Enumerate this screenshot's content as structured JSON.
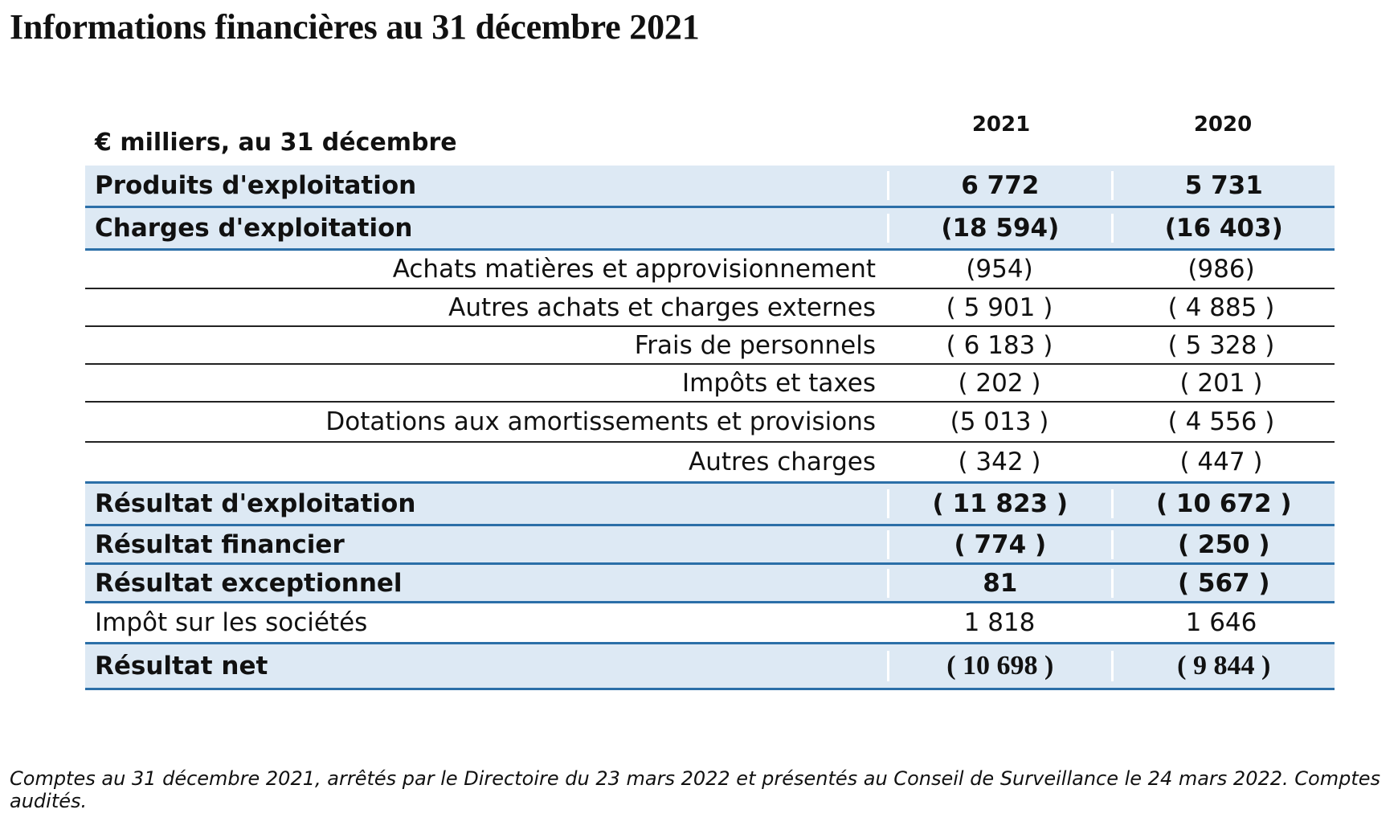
{
  "title": "Informations financières au 31 décembre 2021",
  "table": {
    "unit_label": "€ milliers, au 31 décembre",
    "year_1": "2021",
    "year_2": "2020",
    "rows": [
      {
        "label": "Produits d'exploitation",
        "v2021": "6 772",
        "v2020": "5 731"
      },
      {
        "label": "Charges d'exploitation",
        "v2021": "(18 594)",
        "v2020": "(16 403)"
      },
      {
        "label": "Achats matières et approvisionnement",
        "v2021": "(954)",
        "v2020": "(986)"
      },
      {
        "label": "Autres achats et charges externes",
        "v2021": "( 5 901 )",
        "v2020": "( 4 885 )"
      },
      {
        "label": "Frais de personnels",
        "v2021": "( 6 183 )",
        "v2020": "( 5 328 )"
      },
      {
        "label": "Impôts et taxes",
        "v2021": "( 202 )",
        "v2020": "( 201 )"
      },
      {
        "label": "Dotations aux amortissements et provisions",
        "v2021": "(5 013 )",
        "v2020": "( 4 556 )"
      },
      {
        "label": "Autres charges",
        "v2021": "( 342 )",
        "v2020": "( 447 )"
      },
      {
        "label": "Résultat d'exploitation",
        "v2021": "( 11 823 )",
        "v2020": "( 10 672 )"
      },
      {
        "label": "Résultat financier",
        "v2021": "( 774 )",
        "v2020": "( 250 )"
      },
      {
        "label": "Résultat exceptionnel",
        "v2021": "81",
        "v2020": "( 567 )"
      },
      {
        "label": "Impôt sur les sociétés",
        "v2021": "1 818",
        "v2020": "1 646"
      },
      {
        "label": "Résultat net",
        "v2021": "( 10 698 )",
        "v2020": "( 9 844 )"
      }
    ]
  },
  "footnote": "Comptes au 31 décembre 2021, arrêtés par le Directoire du 23 mars 2022 et présentés au Conseil de Surveillance le 24 mars 2022. Comptes audités.",
  "colors": {
    "highlight_fill": "#dde9f4",
    "highlight_rule": "#2b6fa8"
  }
}
